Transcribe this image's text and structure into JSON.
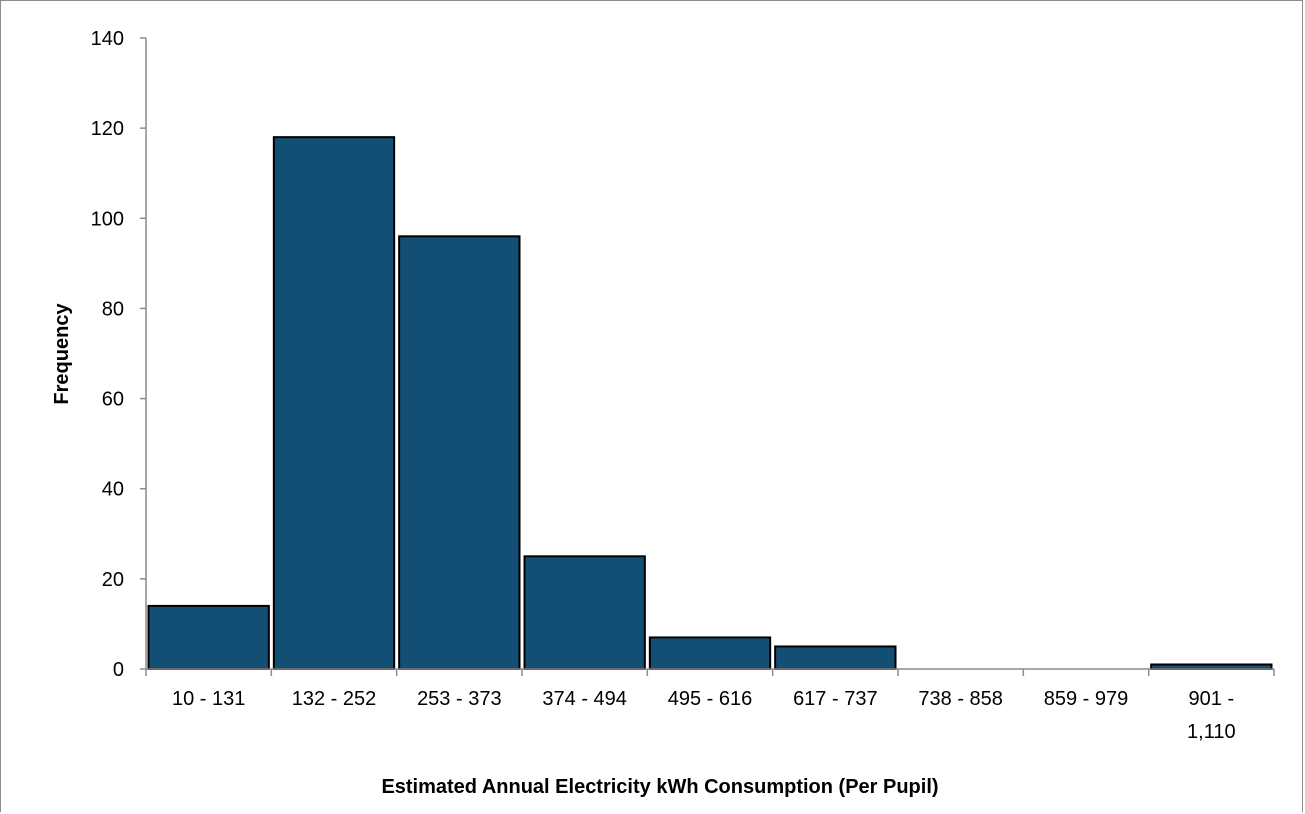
{
  "chart_data": {
    "type": "bar",
    "title": "",
    "xlabel": "Estimated Annual Electricity kWh Consumption (Per Pupil)",
    "ylabel": "Frequency",
    "categories": [
      "10 - 131",
      "132 - 252",
      "253 - 373",
      "374 - 494",
      "495 - 616",
      "617 - 737",
      "738 - 858",
      "859 - 979",
      "901 - 1,110"
    ],
    "values": [
      14,
      118,
      96,
      25,
      7,
      5,
      0,
      0,
      1
    ],
    "ylim": [
      0,
      140
    ],
    "yticks": [
      0,
      20,
      40,
      60,
      80,
      100,
      120,
      140
    ],
    "grid": false,
    "legend": "none",
    "bar_color": "#134f74",
    "bar_edge_color": "#000000"
  }
}
